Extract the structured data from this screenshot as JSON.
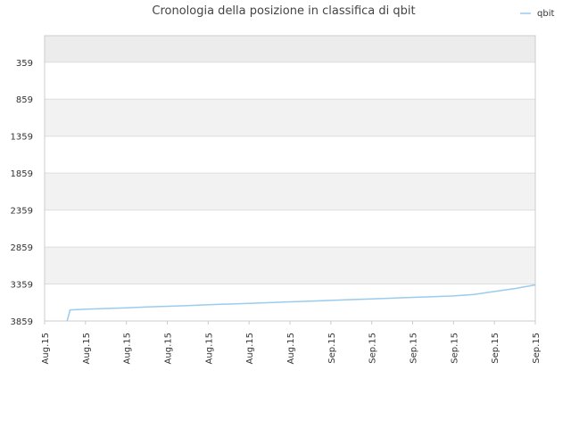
{
  "chart_data": {
    "type": "line",
    "title": "Cronologia della posizione in classifica di qbit",
    "xlabel": "",
    "ylabel": "",
    "y_inverted": true,
    "ylim": [
      3859,
      0
    ],
    "y_ticks": [
      "359",
      "859",
      "1359",
      "1859",
      "2359",
      "2859",
      "3359",
      "3859"
    ],
    "y_tick_values": [
      359,
      859,
      1359,
      1859,
      2359,
      2859,
      3359,
      3859
    ],
    "x_ticks": [
      "Aug.15",
      "Aug.15",
      "Aug.15",
      "Aug.15",
      "Aug.15",
      "Aug.15",
      "Aug.15",
      "Sep.15",
      "Sep.15",
      "Sep.15",
      "Sep.15",
      "Sep.15",
      "Sep.15"
    ],
    "grid": true,
    "legend": {
      "position": "top-right",
      "entries": [
        "qbit"
      ]
    },
    "series": [
      {
        "name": "qbit",
        "color": "#99ccee",
        "x": [
          0.55,
          0.6,
          0.62,
          1.0,
          1.5,
          2.0,
          2.5,
          3.0,
          3.5,
          4.0,
          4.5,
          5.0,
          5.5,
          6.0,
          6.5,
          7.0,
          7.5,
          8.0,
          8.5,
          9.0,
          9.5,
          10.0,
          10.5,
          11.0,
          11.5,
          12.0
        ],
        "values": [
          3859,
          3759,
          3709,
          3700,
          3690,
          3680,
          3670,
          3660,
          3650,
          3640,
          3630,
          3620,
          3610,
          3600,
          3590,
          3580,
          3570,
          3560,
          3550,
          3540,
          3530,
          3520,
          3500,
          3460,
          3420,
          3370
        ]
      }
    ],
    "colors": {
      "band_alt": "#f2f2f2",
      "band_top": "#ececec",
      "grid": "#dddddd",
      "axis": "#cccccc"
    }
  }
}
